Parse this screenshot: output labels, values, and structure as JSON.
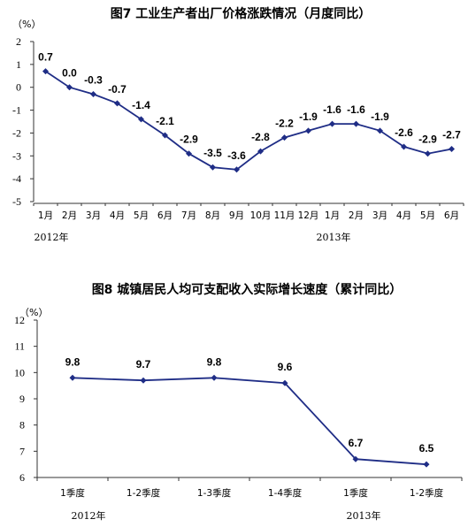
{
  "chart_data": [
    {
      "type": "line",
      "title": "图7 工业生产者出厂价格涨跌情况（月度同比）",
      "unit_label": "（%）",
      "categories": [
        "1月",
        "2月",
        "3月",
        "4月",
        "5月",
        "6月",
        "7月",
        "8月",
        "9月",
        "10月",
        "11月",
        "12月",
        "1月",
        "2月",
        "3月",
        "4月",
        "5月",
        "6月"
      ],
      "year_labels": [
        "2012年",
        "2013年"
      ],
      "series": [
        {
          "values": [
            0.7,
            0.0,
            -0.3,
            -0.7,
            -1.4,
            -2.1,
            -2.9,
            -3.5,
            -3.6,
            -2.8,
            -2.2,
            -1.9,
            -1.6,
            -1.6,
            -1.9,
            -2.6,
            -2.9,
            -2.7
          ]
        }
      ],
      "data_labels": [
        "0.7",
        "0.0",
        "-0.3",
        "-0.7",
        "-1.4",
        "-2.1",
        "-2.9",
        "-3.5",
        "-3.6",
        "-2.8",
        "-2.2",
        "-1.9",
        "-1.6",
        "-1.6",
        "-1.9",
        "-2.6",
        "-2.9",
        "-2.7"
      ],
      "yticks": [
        "2",
        "1",
        "0",
        "-1",
        "-2",
        "-3",
        "-4",
        "-5"
      ],
      "ylim": [
        -5,
        2
      ],
      "grid": false,
      "line_color": "#1f2d86"
    },
    {
      "type": "line",
      "title": "图8 城镇居民人均可支配收入实际增长速度（累计同比）",
      "unit_label": "（%）",
      "categories": [
        "1季度",
        "1-2季度",
        "1-3季度",
        "1-4季度",
        "1季度",
        "1-2季度"
      ],
      "year_labels": [
        "2012年",
        "2013年"
      ],
      "series": [
        {
          "values": [
            9.8,
            9.7,
            9.8,
            9.6,
            6.7,
            6.5
          ]
        }
      ],
      "data_labels": [
        "9.8",
        "9.7",
        "9.8",
        "9.6",
        "6.7",
        "6.5"
      ],
      "yticks": [
        "12",
        "11",
        "10",
        "9",
        "8",
        "7",
        "6"
      ],
      "ylim": [
        6,
        12
      ],
      "grid": false,
      "line_color": "#1f2d86"
    }
  ]
}
